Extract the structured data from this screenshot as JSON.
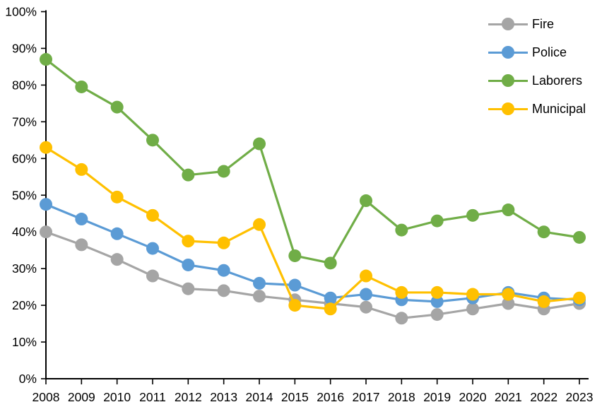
{
  "chart_data": {
    "type": "line",
    "title": "",
    "xlabel": "",
    "ylabel": "",
    "categories": [
      "2008",
      "2009",
      "2010",
      "2011",
      "2012",
      "2013",
      "2014",
      "2015",
      "2016",
      "2017",
      "2018",
      "2019",
      "2020",
      "2021",
      "2022",
      "2023"
    ],
    "series": [
      {
        "name": "Fire",
        "color": "#A5A5A5",
        "values": [
          40,
          36.5,
          32.5,
          28,
          24.5,
          24,
          22.5,
          21.5,
          20.5,
          19.5,
          16.5,
          17.5,
          19,
          20.5,
          19,
          20.5
        ]
      },
      {
        "name": "Police",
        "color": "#5B9BD5",
        "values": [
          47.5,
          43.5,
          39.5,
          35.5,
          31,
          29.5,
          26,
          25.5,
          22,
          23,
          21.5,
          21,
          22,
          23.5,
          22,
          21.5
        ]
      },
      {
        "name": "Laborers",
        "color": "#70AD47",
        "values": [
          87,
          79.5,
          74,
          65,
          55.5,
          56.5,
          64,
          33.5,
          31.5,
          48.5,
          40.5,
          43,
          44.5,
          46,
          40,
          38.5
        ]
      },
      {
        "name": "Municipal",
        "color": "#FFC000",
        "values": [
          63,
          57,
          49.5,
          44.5,
          37.5,
          37,
          42,
          20,
          19,
          28,
          23.5,
          23.5,
          23,
          23,
          21,
          22
        ]
      }
    ],
    "ylim": [
      0,
      100
    ],
    "ytick_step": 10,
    "ytick_labels": [
      "0%",
      "10%",
      "20%",
      "30%",
      "40%",
      "50%",
      "60%",
      "70%",
      "80%",
      "90%",
      "100%"
    ],
    "grid": false,
    "legend_position": "top-right",
    "axis_color": "#000000",
    "label_color": "#000000"
  }
}
